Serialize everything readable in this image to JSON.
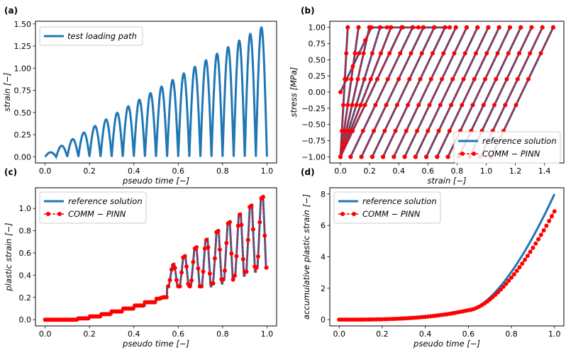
{
  "colors": {
    "reference": "#1f77b4",
    "comm_pinn": "#ff0000"
  },
  "chart_data": [
    {
      "panel": "(a)",
      "type": "line",
      "title": "",
      "xlabel": "pseudo time [−]",
      "ylabel": "strain [−]",
      "xlim": [
        0.0,
        1.0
      ],
      "ylim": [
        0.0,
        1.5
      ],
      "xticks": [
        "0.0",
        "0.2",
        "0.4",
        "0.6",
        "0.8",
        "1.0"
      ],
      "yticks": [
        "0.00",
        "0.25",
        "0.50",
        "0.75",
        "1.00",
        "1.25",
        "1.50"
      ],
      "legend": [
        "test loading path"
      ],
      "legend_position": "top-left",
      "series": [
        {
          "name": "test loading path",
          "style": "solid",
          "color": "#1f77b4",
          "description": "20 half-sine loading cycles with linearly increasing amplitude",
          "cycles": 20,
          "amplitude_start": 0.05,
          "amplitude_end": 1.46,
          "x_start": 0.0,
          "x_end": 1.0
        }
      ]
    },
    {
      "panel": "(b)",
      "type": "line",
      "title": "",
      "xlabel": "strain [−]",
      "ylabel": "stress  [MPa]",
      "xlim": [
        0.0,
        1.46
      ],
      "ylim": [
        -1.0,
        1.0
      ],
      "xticks": [
        "0.0",
        "0.2",
        "0.4",
        "0.6",
        "0.8",
        "1.0",
        "1.2",
        "1.4"
      ],
      "yticks": [
        "−1.00",
        "−0.75",
        "−0.50",
        "−0.25",
        "0.00",
        "0.25",
        "0.50",
        "0.75",
        "1.00"
      ],
      "legend": [
        "reference solution",
        "COMM − PINN"
      ],
      "legend_position": "bottom-right",
      "series": [
        {
          "name": "reference solution",
          "style": "solid",
          "color": "#1f77b4",
          "description": "elastoplastic hysteresis loops, yield stress 1 MPa, elastic slope about 4.7"
        },
        {
          "name": "COMM − PINN",
          "style": "dashed-circle-markers",
          "color": "#ff0000"
        }
      ]
    },
    {
      "panel": "(c)",
      "type": "line",
      "title": "",
      "xlabel": "pseudo time [−]",
      "ylabel": "plastic strain [−]",
      "xlim": [
        0.0,
        1.0
      ],
      "ylim": [
        0.0,
        1.13
      ],
      "xticks": [
        "0.0",
        "0.2",
        "0.4",
        "0.6",
        "0.8",
        "1.0"
      ],
      "yticks": [
        "0.0",
        "0.2",
        "0.4",
        "0.6",
        "0.8",
        "1.0"
      ],
      "legend": [
        "reference solution",
        "COMM − PINN"
      ],
      "legend_position": "top-left",
      "series": [
        {
          "name": "reference solution",
          "style": "solid",
          "color": "#1f77b4",
          "description": "stepwise increasing plastic strain, oscillating in later cycles, max about 1.13"
        },
        {
          "name": "COMM − PINN",
          "style": "dashed-circle-markers",
          "color": "#ff0000"
        }
      ]
    },
    {
      "panel": "(d)",
      "type": "line",
      "title": "",
      "xlabel": "pseudo time [−]",
      "ylabel": "accumulative plastic strain [−]",
      "xlim": [
        0.0,
        1.0
      ],
      "ylim": [
        0.0,
        8.0
      ],
      "xticks": [
        "0.0",
        "0.2",
        "0.4",
        "0.6",
        "0.8",
        "1.0"
      ],
      "yticks": [
        "0",
        "2",
        "4",
        "6",
        "8"
      ],
      "legend": [
        "reference solution",
        "COMM − PINN"
      ],
      "legend_position": "top-left",
      "series": [
        {
          "name": "reference solution",
          "style": "solid",
          "color": "#1f77b4",
          "end_value": 8.0,
          "description": "near zero until 0.6 then rising steeply"
        },
        {
          "name": "COMM − PINN",
          "style": "dashed-circle-markers",
          "color": "#ff0000",
          "end_value": 6.9
        }
      ]
    }
  ]
}
